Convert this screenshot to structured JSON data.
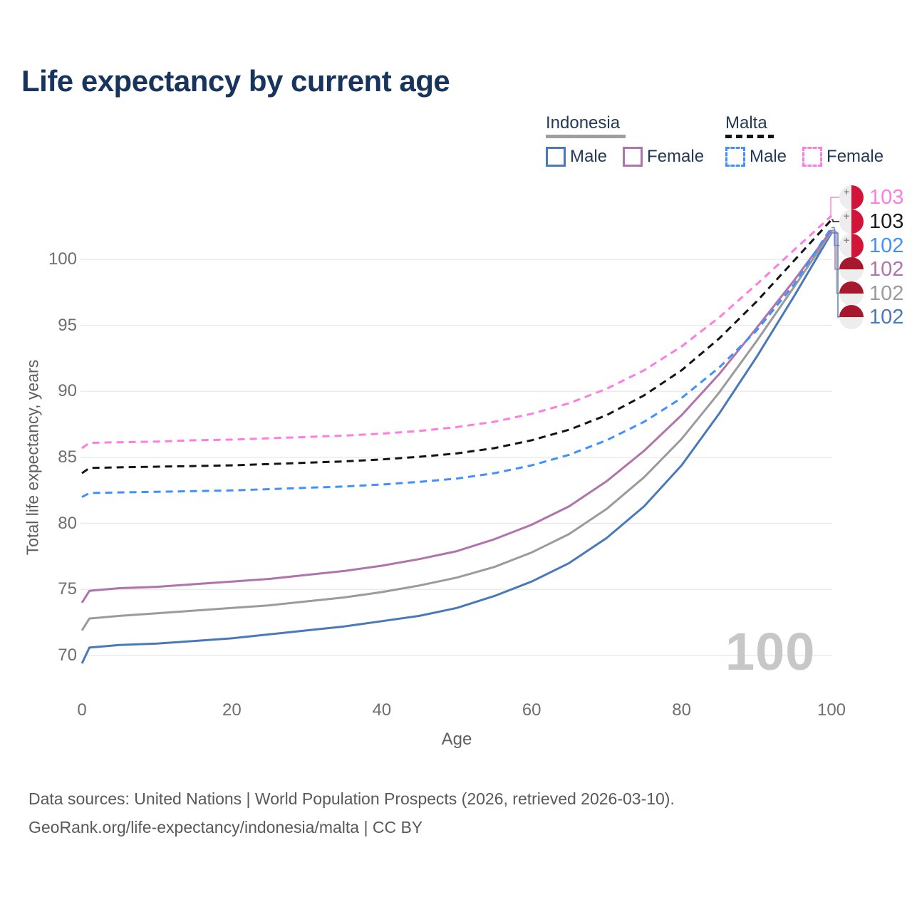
{
  "title": "Life expectancy by current age",
  "legend": {
    "groups": [
      {
        "name": "Indonesia",
        "underline_style": "solid",
        "underline_color": "#9e9e9e",
        "items": [
          {
            "label": "Male",
            "color": "#4a79b9",
            "dashed": false
          },
          {
            "label": "Female",
            "color": "#b173ac",
            "dashed": false
          }
        ]
      },
      {
        "name": "Malta",
        "underline_style": "dashed",
        "underline_color": "#141414",
        "items": [
          {
            "label": "Male",
            "color": "#4190fb",
            "dashed": true
          },
          {
            "label": "Female",
            "color": "#ff7ce1",
            "dashed": true
          }
        ]
      }
    ]
  },
  "axes": {
    "y_title": "Total life expectancy, years",
    "y_ticks": [
      70,
      75,
      80,
      85,
      90,
      95,
      100
    ],
    "x_title": "Age",
    "x_ticks": [
      0,
      20,
      40,
      60,
      80,
      100
    ]
  },
  "watermark": "100",
  "end_labels": [
    {
      "flag": "malta",
      "value": "103",
      "color": "#ff7ce1",
      "series": "malta_female"
    },
    {
      "flag": "malta",
      "value": "103",
      "color": "#1a1a1a",
      "series": "malta_both"
    },
    {
      "flag": "malta",
      "value": "102",
      "color": "#4190fb",
      "series": "malta_male"
    },
    {
      "flag": "indonesia",
      "value": "102",
      "color": "#b173ac",
      "series": "indonesia_female"
    },
    {
      "flag": "indonesia",
      "value": "102",
      "color": "#9b9b9b",
      "series": "indonesia_both"
    },
    {
      "flag": "indonesia",
      "value": "102",
      "color": "#4a79b9",
      "series": "indonesia_male"
    }
  ],
  "flag_colors": {
    "malta_red": "#d2143b",
    "indonesia_red": "#a6182e",
    "light": "#ededed",
    "cross": "#8a8a8a"
  },
  "footer": {
    "line1": "Data sources: United Nations | World Population Prospects (2026, retrieved 2026-03-10).",
    "line2": "GeoRank.org/life-expectancy/indonesia/malta | CC BY"
  },
  "chart_data": {
    "type": "line",
    "title": "Life expectancy by current age",
    "xlabel": "Age",
    "ylabel": "Total life expectancy, years",
    "xlim": [
      0,
      100
    ],
    "ylim": [
      69,
      104
    ],
    "grid": "horizontal",
    "legend_position": "top-right",
    "x": [
      0,
      1,
      5,
      10,
      15,
      20,
      25,
      30,
      35,
      40,
      45,
      50,
      55,
      60,
      65,
      70,
      75,
      80,
      85,
      90,
      95,
      100
    ],
    "series": [
      {
        "id": "indonesia_male",
        "name": "Indonesia Male",
        "color": "#4a79b9",
        "dashed": false,
        "values": [
          69.4,
          70.6,
          70.8,
          70.9,
          71.1,
          71.3,
          71.6,
          71.9,
          72.2,
          72.6,
          73.0,
          73.6,
          74.5,
          75.6,
          77.0,
          78.9,
          81.3,
          84.4,
          88.3,
          92.6,
          97.2,
          102.0
        ]
      },
      {
        "id": "indonesia_both",
        "name": "Indonesia (both sexes)",
        "color": "#9b9b9b",
        "dashed": false,
        "values": [
          71.9,
          72.8,
          73.0,
          73.2,
          73.4,
          73.6,
          73.8,
          74.1,
          74.4,
          74.8,
          75.3,
          75.9,
          76.7,
          77.8,
          79.2,
          81.1,
          83.5,
          86.4,
          89.9,
          93.8,
          97.9,
          102.1
        ]
      },
      {
        "id": "indonesia_female",
        "name": "Indonesia Female",
        "color": "#b173ac",
        "dashed": false,
        "values": [
          74.0,
          74.9,
          75.1,
          75.2,
          75.4,
          75.6,
          75.8,
          76.1,
          76.4,
          76.8,
          77.3,
          77.9,
          78.8,
          79.9,
          81.3,
          83.2,
          85.5,
          88.2,
          91.3,
          94.8,
          98.4,
          102.2
        ]
      },
      {
        "id": "malta_male",
        "name": "Malta Male",
        "color": "#4190fb",
        "dashed": true,
        "values": [
          82.0,
          82.3,
          82.35,
          82.4,
          82.45,
          82.5,
          82.6,
          82.7,
          82.8,
          82.95,
          83.15,
          83.4,
          83.8,
          84.4,
          85.2,
          86.3,
          87.7,
          89.5,
          91.8,
          94.6,
          98.1,
          102.4
        ]
      },
      {
        "id": "malta_both",
        "name": "Malta (both sexes)",
        "color": "#141414",
        "dashed": true,
        "values": [
          83.8,
          84.2,
          84.25,
          84.3,
          84.35,
          84.4,
          84.5,
          84.6,
          84.7,
          84.85,
          85.05,
          85.3,
          85.7,
          86.3,
          87.1,
          88.2,
          89.7,
          91.6,
          94.0,
          96.8,
          99.9,
          103.0
        ]
      },
      {
        "id": "malta_female",
        "name": "Malta Female",
        "color": "#ff7ce1",
        "dashed": true,
        "values": [
          85.7,
          86.1,
          86.15,
          86.2,
          86.3,
          86.35,
          86.45,
          86.55,
          86.65,
          86.8,
          87.0,
          87.3,
          87.7,
          88.3,
          89.1,
          90.2,
          91.6,
          93.4,
          95.6,
          98.1,
          100.7,
          103.3
        ]
      }
    ]
  }
}
